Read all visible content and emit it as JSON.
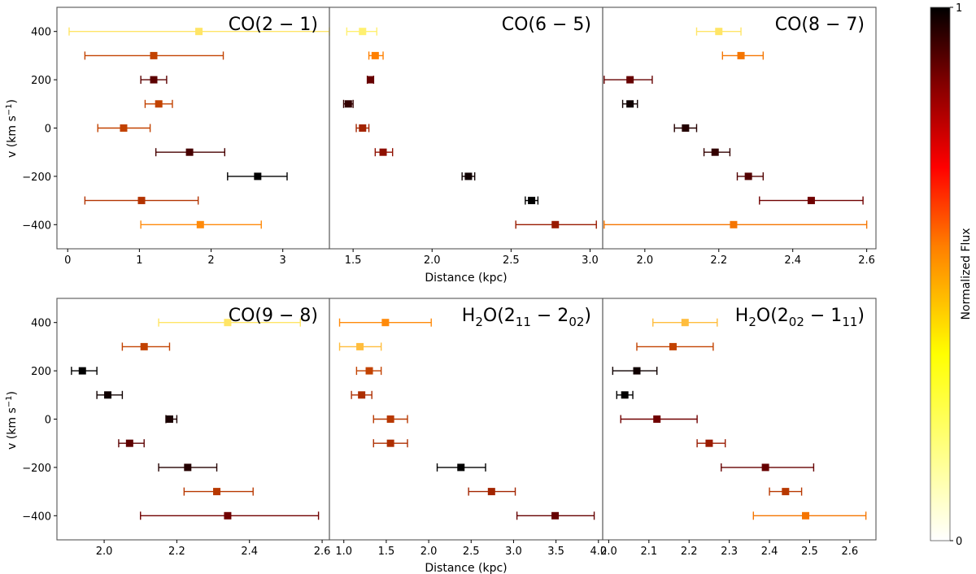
{
  "colorbar": {
    "label": "Normalized Flux",
    "tick_max": "1",
    "tick_min": "0",
    "colormap": "afmhot_r",
    "stops": [
      "#ffffff",
      "#ffff00",
      "#ff8000",
      "#ff0000",
      "#800000",
      "#000000"
    ]
  },
  "axes": {
    "ylabel_main": "v (km s",
    "ylabel_exp": "−1",
    "ylabel_close": ")",
    "xlabel": "Distance (kpc)",
    "ylim": [
      -500,
      500
    ],
    "yticks": [
      400,
      200,
      0,
      -200,
      -400
    ]
  },
  "chart_data": [
    {
      "type": "scatter",
      "title_html": "CO(2 − 1)",
      "xlim": [
        -0.15,
        3.65
      ],
      "xticks": [
        0,
        1,
        2,
        3
      ],
      "points": [
        {
          "v": 400,
          "x": 1.83,
          "xerr": [
            0.02,
            3.65
          ],
          "flux": 0.3
        },
        {
          "v": 300,
          "x": 1.2,
          "xerr": [
            0.24,
            2.17
          ],
          "flux": 0.62
        },
        {
          "v": 200,
          "x": 1.2,
          "xerr": [
            1.02,
            1.38
          ],
          "flux": 0.82
        },
        {
          "v": 100,
          "x": 1.27,
          "xerr": [
            1.08,
            1.46
          ],
          "flux": 0.62
        },
        {
          "v": 0,
          "x": 0.78,
          "xerr": [
            0.42,
            1.15
          ],
          "flux": 0.62
        },
        {
          "v": -100,
          "x": 1.7,
          "xerr": [
            1.23,
            2.19
          ],
          "flux": 0.86
        },
        {
          "v": -200,
          "x": 2.65,
          "xerr": [
            2.23,
            3.06
          ],
          "flux": 1.0
        },
        {
          "v": -300,
          "x": 1.03,
          "xerr": [
            0.24,
            1.82
          ],
          "flux": 0.65
        },
        {
          "v": -400,
          "x": 1.85,
          "xerr": [
            1.02,
            2.7
          ],
          "flux": 0.48
        }
      ]
    },
    {
      "type": "scatter",
      "title_html": "CO(6 − 5)",
      "xlim": [
        1.35,
        3.08
      ],
      "xticks": [
        1.5,
        2.0,
        2.5,
        3.0
      ],
      "tick_labels": [
        "1.5",
        "2.0",
        "2.5",
        "3.0"
      ],
      "points": [
        {
          "v": 400,
          "x": 1.56,
          "xerr": [
            1.46,
            1.65
          ],
          "flux": 0.28
        },
        {
          "v": 300,
          "x": 1.64,
          "xerr": [
            1.6,
            1.69
          ],
          "flux": 0.5
        },
        {
          "v": 200,
          "x": 1.61,
          "xerr": [
            1.59,
            1.63
          ],
          "flux": 0.8
        },
        {
          "v": 100,
          "x": 1.47,
          "xerr": [
            1.44,
            1.5
          ],
          "flux": 0.9
        },
        {
          "v": 0,
          "x": 1.56,
          "xerr": [
            1.52,
            1.6
          ],
          "flux": 0.68
        },
        {
          "v": -100,
          "x": 1.69,
          "xerr": [
            1.64,
            1.75
          ],
          "flux": 0.72
        },
        {
          "v": -200,
          "x": 2.23,
          "xerr": [
            2.19,
            2.27
          ],
          "flux": 0.97
        },
        {
          "v": -300,
          "x": 2.63,
          "xerr": [
            2.59,
            2.67
          ],
          "flux": 1.0
        },
        {
          "v": -400,
          "x": 2.78,
          "xerr": [
            2.53,
            3.04
          ],
          "flux": 0.7
        }
      ]
    },
    {
      "type": "scatter",
      "title_html": "CO(8 − 7)",
      "xlim": [
        1.886,
        2.625
      ],
      "xticks": [
        2.0,
        2.2,
        2.4,
        2.6
      ],
      "tick_labels": [
        "2.0",
        "2.2",
        "2.4",
        "2.6"
      ],
      "points": [
        {
          "v": 400,
          "x": 2.2,
          "xerr": [
            2.14,
            2.26
          ],
          "flux": 0.3
        },
        {
          "v": 300,
          "x": 2.26,
          "xerr": [
            2.21,
            2.32
          ],
          "flux": 0.52
        },
        {
          "v": 200,
          "x": 1.96,
          "xerr": [
            1.89,
            2.02
          ],
          "flux": 0.8
        },
        {
          "v": 100,
          "x": 1.96,
          "xerr": [
            1.94,
            1.98
          ],
          "flux": 0.97
        },
        {
          "v": 0,
          "x": 2.11,
          "xerr": [
            2.08,
            2.14
          ],
          "flux": 0.93
        },
        {
          "v": -100,
          "x": 2.19,
          "xerr": [
            2.16,
            2.23
          ],
          "flux": 0.9
        },
        {
          "v": -200,
          "x": 2.28,
          "xerr": [
            2.25,
            2.32
          ],
          "flux": 0.84
        },
        {
          "v": -300,
          "x": 2.45,
          "xerr": [
            2.31,
            2.59
          ],
          "flux": 0.78
        },
        {
          "v": -400,
          "x": 2.24,
          "xerr": [
            1.89,
            2.6
          ],
          "flux": 0.52
        }
      ]
    },
    {
      "type": "scatter",
      "title_html": "CO(9 − 8)",
      "xlim": [
        1.87,
        2.62
      ],
      "xticks": [
        2.0,
        2.2,
        2.4,
        2.6
      ],
      "tick_labels": [
        "2.0",
        "2.2",
        "2.4",
        "2.6"
      ],
      "points": [
        {
          "v": 400,
          "x": 2.34,
          "xerr": [
            2.15,
            2.54
          ],
          "flux": 0.3
        },
        {
          "v": 300,
          "x": 2.11,
          "xerr": [
            2.05,
            2.18
          ],
          "flux": 0.62
        },
        {
          "v": 200,
          "x": 1.94,
          "xerr": [
            1.91,
            1.98
          ],
          "flux": 1.0
        },
        {
          "v": 100,
          "x": 2.01,
          "xerr": [
            1.98,
            2.05
          ],
          "flux": 0.97
        },
        {
          "v": 0,
          "x": 2.18,
          "xerr": [
            2.17,
            2.2
          ],
          "flux": 0.95
        },
        {
          "v": -100,
          "x": 2.07,
          "xerr": [
            2.04,
            2.11
          ],
          "flux": 0.82
        },
        {
          "v": -200,
          "x": 2.23,
          "xerr": [
            2.15,
            2.31
          ],
          "flux": 0.93
        },
        {
          "v": -300,
          "x": 2.31,
          "xerr": [
            2.22,
            2.41
          ],
          "flux": 0.64
        },
        {
          "v": -400,
          "x": 2.34,
          "xerr": [
            2.1,
            2.59
          ],
          "flux": 0.78
        }
      ]
    },
    {
      "type": "scatter",
      "title_html": "H2O(211 − 202)",
      "xlim": [
        0.83,
        4.05
      ],
      "xticks": [
        1.0,
        1.5,
        2.0,
        2.5,
        3.0,
        3.5,
        4.0
      ],
      "tick_labels": [
        "1.0",
        "1.5",
        "2.0",
        "2.5",
        "3.0",
        "3.5",
        "4.0"
      ],
      "points": [
        {
          "v": 400,
          "x": 1.49,
          "xerr": [
            0.95,
            2.03
          ],
          "flux": 0.48
        },
        {
          "v": 300,
          "x": 1.19,
          "xerr": [
            0.95,
            1.44
          ],
          "flux": 0.38
        },
        {
          "v": 200,
          "x": 1.3,
          "xerr": [
            1.15,
            1.44
          ],
          "flux": 0.62
        },
        {
          "v": 100,
          "x": 1.21,
          "xerr": [
            1.09,
            1.33
          ],
          "flux": 0.66
        },
        {
          "v": 0,
          "x": 1.55,
          "xerr": [
            1.35,
            1.75
          ],
          "flux": 0.64
        },
        {
          "v": -100,
          "x": 1.55,
          "xerr": [
            1.35,
            1.75
          ],
          "flux": 0.66
        },
        {
          "v": -200,
          "x": 2.38,
          "xerr": [
            2.1,
            2.67
          ],
          "flux": 1.0
        },
        {
          "v": -300,
          "x": 2.74,
          "xerr": [
            2.47,
            3.02
          ],
          "flux": 0.68
        },
        {
          "v": -400,
          "x": 3.49,
          "xerr": [
            3.04,
            3.95
          ],
          "flux": 0.8
        }
      ]
    },
    {
      "type": "scatter",
      "title_html": "H2O(202 − 111)",
      "xlim": [
        1.985,
        2.665
      ],
      "xticks": [
        2.0,
        2.1,
        2.2,
        2.3,
        2.4,
        2.5,
        2.6
      ],
      "tick_labels": [
        "2.0",
        "2.1",
        "2.2",
        "2.3",
        "2.4",
        "2.5",
        "2.6"
      ],
      "points": [
        {
          "v": 400,
          "x": 2.19,
          "xerr": [
            2.11,
            2.27
          ],
          "flux": 0.38
        },
        {
          "v": 300,
          "x": 2.16,
          "xerr": [
            2.07,
            2.26
          ],
          "flux": 0.62
        },
        {
          "v": 200,
          "x": 2.07,
          "xerr": [
            2.01,
            2.12
          ],
          "flux": 0.97
        },
        {
          "v": 100,
          "x": 2.04,
          "xerr": [
            2.02,
            2.06
          ],
          "flux": 1.0
        },
        {
          "v": 0,
          "x": 2.12,
          "xerr": [
            2.03,
            2.22
          ],
          "flux": 0.78
        },
        {
          "v": -100,
          "x": 2.25,
          "xerr": [
            2.22,
            2.29
          ],
          "flux": 0.7
        },
        {
          "v": -200,
          "x": 2.39,
          "xerr": [
            2.28,
            2.51
          ],
          "flux": 0.8
        },
        {
          "v": -300,
          "x": 2.44,
          "xerr": [
            2.4,
            2.48
          ],
          "flux": 0.64
        },
        {
          "v": -400,
          "x": 2.49,
          "xerr": [
            2.36,
            2.64
          ],
          "flux": 0.52
        }
      ]
    }
  ]
}
